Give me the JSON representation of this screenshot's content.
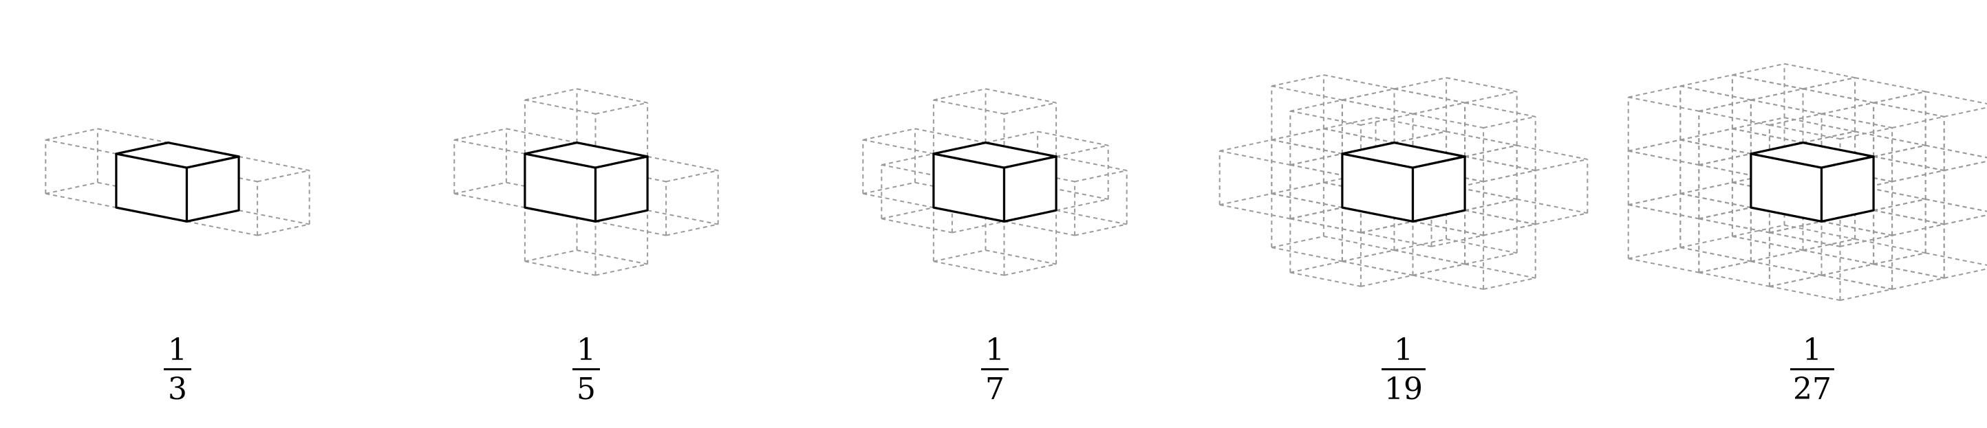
{
  "figures": [
    {
      "id": "stencil-3",
      "numerator": "1",
      "denominator": "3",
      "offsets": [
        [
          -1,
          0,
          0
        ],
        [
          1,
          0,
          0
        ]
      ]
    },
    {
      "id": "stencil-5",
      "numerator": "1",
      "denominator": "5",
      "offsets": [
        [
          -1,
          0,
          0
        ],
        [
          1,
          0,
          0
        ],
        [
          0,
          1,
          0
        ],
        [
          0,
          -1,
          0
        ]
      ]
    },
    {
      "id": "stencil-7",
      "numerator": "1",
      "denominator": "7",
      "offsets": [
        [
          -1,
          0,
          0
        ],
        [
          1,
          0,
          0
        ],
        [
          0,
          1,
          0
        ],
        [
          0,
          -1,
          0
        ],
        [
          0,
          0,
          1
        ],
        [
          0,
          0,
          -1
        ]
      ]
    },
    {
      "id": "stencil-19",
      "numerator": "1",
      "denominator": "19",
      "neighborhood": "distance-le-2"
    },
    {
      "id": "stencil-27",
      "numerator": "1",
      "denominator": "27",
      "neighborhood": "full-3x3x3"
    }
  ],
  "colors": {
    "center_cube": "#000000",
    "neighbor_cube": "#9a9a9a",
    "background": "#ffffff"
  }
}
